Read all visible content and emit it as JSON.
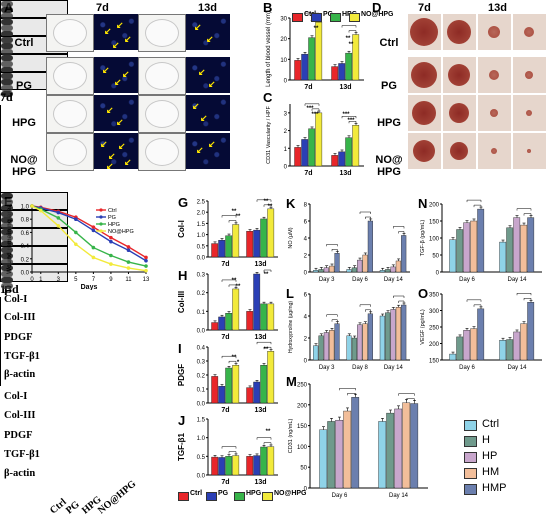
{
  "panels": {
    "A": {
      "label": "A",
      "days": [
        "7d",
        "13d"
      ],
      "rows": [
        "Ctrl",
        "PG",
        "HPG",
        "NO@\nHPG"
      ]
    },
    "B": {
      "label": "B"
    },
    "C": {
      "label": "C"
    },
    "D": {
      "label": "D",
      "days": [
        "7d",
        "13d"
      ],
      "rows": [
        "Ctrl",
        "PG",
        "HPG",
        "NO@\nHPG"
      ]
    },
    "E": {
      "label": "E"
    },
    "F": {
      "label": "F",
      "proteins": [
        "Col-I",
        "Col-III",
        "PDGF",
        "TGF-β1",
        "β-actin"
      ],
      "groups": [
        "7d",
        "13d"
      ],
      "lanes": [
        "Ctrl",
        "PG",
        "HPG",
        "NO@\nHPG"
      ]
    },
    "G": {
      "label": "G"
    },
    "H": {
      "label": "H"
    },
    "I": {
      "label": "I"
    },
    "J": {
      "label": "J"
    },
    "K": {
      "label": "K"
    },
    "L": {
      "label": "L"
    },
    "M": {
      "label": "M"
    },
    "N": {
      "label": "N"
    },
    "O": {
      "label": "O"
    }
  },
  "legend_top": [
    "Ctrl",
    "PG",
    "HPG",
    "NO@HPG"
  ],
  "legend_bottom": [
    "Ctrl",
    "PG",
    "HPG",
    "NO@HPG"
  ],
  "legend_right": [
    "Ctrl",
    "H",
    "HP",
    "HM",
    "HMP"
  ],
  "colors": {
    "ctrl": "#e8262a",
    "pg": "#2b3fb5",
    "hpg": "#37b44a",
    "no": "#f2ea3b",
    "k_ctrl": "#8fd3e8",
    "k_h": "#6f9a8c",
    "k_hp": "#c8a6cc",
    "k_hm": "#f2be9a",
    "k_hmp": "#6b7fae"
  },
  "chart_data": [
    {
      "id": "B",
      "type": "bar",
      "categories": [
        "7d",
        "13d"
      ],
      "ylabel": "Length of blood vessel (mm)",
      "ylim": [
        0,
        30
      ],
      "yticks": [
        0,
        10,
        20,
        30
      ],
      "series": [
        {
          "name": "Ctrl",
          "values": [
            9.5,
            6.5
          ]
        },
        {
          "name": "PG",
          "values": [
            12.5,
            8
          ]
        },
        {
          "name": "HPG",
          "values": [
            20.5,
            13
          ]
        },
        {
          "name": "NO@HPG",
          "values": [
            28,
            22
          ]
        }
      ],
      "sig": [
        "**",
        "**",
        "**",
        "**"
      ]
    },
    {
      "id": "C",
      "type": "bar",
      "categories": [
        "7d",
        "13d"
      ],
      "ylabel": "CD31 Vascularity / HPF",
      "ylim": [
        0,
        3.5
      ],
      "yticks": [
        0,
        1,
        2,
        3
      ],
      "series": [
        {
          "name": "Ctrl",
          "values": [
            1.05,
            0.6
          ]
        },
        {
          "name": "PG",
          "values": [
            1.5,
            0.8
          ]
        },
        {
          "name": "HPG",
          "values": [
            2.1,
            1.6
          ]
        },
        {
          "name": "NO@HPG",
          "values": [
            3.0,
            2.3
          ]
        }
      ],
      "sig": [
        "***",
        "***",
        "***",
        "***"
      ]
    },
    {
      "id": "E",
      "type": "line",
      "ylabel": "Wound remaining area",
      "xlabel": "Days",
      "ylim": [
        0,
        1.0
      ],
      "yticks": [
        0.0,
        0.2,
        0.4,
        0.6,
        0.8,
        1.0
      ],
      "xticks": [
        0,
        1,
        3,
        5,
        7,
        9,
        11,
        13
      ],
      "x": [
        0,
        1,
        3,
        5,
        7,
        9,
        11,
        13
      ],
      "series": [
        {
          "name": "Ctrl",
          "values": [
            1.0,
            0.98,
            0.92,
            0.83,
            0.68,
            0.52,
            0.38,
            0.22
          ]
        },
        {
          "name": "PG",
          "values": [
            1.0,
            0.97,
            0.9,
            0.8,
            0.63,
            0.46,
            0.33,
            0.17
          ]
        },
        {
          "name": "HPG",
          "values": [
            1.0,
            0.95,
            0.82,
            0.6,
            0.37,
            0.25,
            0.15,
            0.09
          ]
        },
        {
          "name": "NO@HPG",
          "values": [
            1.0,
            0.93,
            0.7,
            0.42,
            0.22,
            0.12,
            0.06,
            0.02
          ]
        }
      ]
    },
    {
      "id": "G",
      "type": "bar",
      "ylabel": "Col-I",
      "categories": [
        "7d",
        "13d"
      ],
      "ylim": [
        0,
        2.5
      ],
      "yticks": [
        0.0,
        0.5,
        1.0,
        1.5,
        2.0,
        2.5
      ],
      "series": [
        {
          "name": "Ctrl",
          "values": [
            0.6,
            1.15
          ]
        },
        {
          "name": "PG",
          "values": [
            0.75,
            1.2
          ]
        },
        {
          "name": "HPG",
          "values": [
            0.95,
            1.7
          ]
        },
        {
          "name": "NO@HPG",
          "values": [
            1.45,
            2.15
          ]
        }
      ],
      "sig": [
        "**",
        "**",
        "**",
        "**"
      ]
    },
    {
      "id": "H",
      "type": "bar",
      "ylabel": "Col-III",
      "categories": [
        "7d",
        "13d"
      ],
      "ylim": [
        0,
        0.3
      ],
      "yticks": [
        0.0,
        0.1,
        0.2,
        0.3
      ],
      "series": [
        {
          "name": "Ctrl",
          "values": [
            0.04,
            0.1
          ]
        },
        {
          "name": "PG",
          "values": [
            0.07,
            0.3
          ]
        },
        {
          "name": "HPG",
          "values": [
            0.09,
            0.14
          ]
        },
        {
          "name": "NO@HPG",
          "values": [
            0.22,
            0.14
          ]
        }
      ],
      "sig": [
        "**",
        "**",
        "**"
      ]
    },
    {
      "id": "I",
      "type": "bar",
      "ylabel": "PDGF",
      "categories": [
        "7d",
        "13d"
      ],
      "ylim": [
        0,
        0.4
      ],
      "yticks": [
        0.0,
        0.1,
        0.2,
        0.3,
        0.4
      ],
      "series": [
        {
          "name": "Ctrl",
          "values": [
            0.19,
            0.11
          ]
        },
        {
          "name": "PG",
          "values": [
            0.12,
            0.15
          ]
        },
        {
          "name": "HPG",
          "values": [
            0.25,
            0.27
          ]
        },
        {
          "name": "NO@HPG",
          "values": [
            0.27,
            0.37
          ]
        }
      ],
      "sig": [
        "**",
        "*",
        "**"
      ]
    },
    {
      "id": "J",
      "type": "bar",
      "ylabel": "TGF-β1",
      "categories": [
        "7d",
        "13d"
      ],
      "ylim": [
        0,
        1.5
      ],
      "yticks": [
        0.0,
        0.5,
        1.0,
        1.5
      ],
      "series": [
        {
          "name": "Ctrl",
          "values": [
            0.48,
            0.5
          ]
        },
        {
          "name": "PG",
          "values": [
            0.47,
            0.52
          ]
        },
        {
          "name": "HPG",
          "values": [
            0.5,
            0.75
          ]
        },
        {
          "name": "NO@HPG",
          "values": [
            0.52,
            0.76
          ]
        }
      ],
      "sig": [
        "**"
      ]
    },
    {
      "id": "K",
      "type": "bar",
      "ylabel": "NO (μM)",
      "categories": [
        "Day 3",
        "Day 6",
        "Day 14"
      ],
      "ylim": [
        0,
        8
      ],
      "yticks": [
        0,
        2,
        4,
        6,
        8
      ],
      "series": [
        {
          "name": "Ctrl",
          "values": [
            0.2,
            0.3,
            0.2
          ]
        },
        {
          "name": "H",
          "values": [
            0.3,
            0.5,
            0.3
          ]
        },
        {
          "name": "HP",
          "values": [
            0.5,
            1.4,
            0.6
          ]
        },
        {
          "name": "HM",
          "values": [
            0.7,
            2.0,
            1.3
          ]
        },
        {
          "name": "HMP",
          "values": [
            2.2,
            6.0,
            4.3
          ]
        }
      ]
    },
    {
      "id": "L",
      "type": "bar",
      "ylabel": "Hydroxyproline (μg/mg)",
      "categories": [
        "Day 3",
        "Day 8",
        "Day 14"
      ],
      "ylim": [
        0,
        6
      ],
      "yticks": [
        0,
        2,
        4,
        6
      ],
      "series": [
        {
          "name": "Ctrl",
          "values": [
            1.3,
            2.2,
            4.0
          ]
        },
        {
          "name": "H",
          "values": [
            2.2,
            2.0,
            4.3
          ]
        },
        {
          "name": "HP",
          "values": [
            2.5,
            3.2,
            4.6
          ]
        },
        {
          "name": "HM",
          "values": [
            2.7,
            3.3,
            4.8
          ]
        },
        {
          "name": "HMP",
          "values": [
            3.3,
            4.2,
            5.0
          ]
        }
      ]
    },
    {
      "id": "M",
      "type": "bar",
      "ylabel": "CD31 (ng/mL)",
      "categories": [
        "Day 6",
        "Day 14"
      ],
      "ylim": [
        0,
        250
      ],
      "yticks": [
        0,
        50,
        100,
        150,
        200,
        250
      ],
      "series": [
        {
          "name": "Ctrl",
          "values": [
            140,
            160
          ]
        },
        {
          "name": "H",
          "values": [
            160,
            180
          ]
        },
        {
          "name": "HP",
          "values": [
            163,
            190
          ]
        },
        {
          "name": "HM",
          "values": [
            185,
            205
          ]
        },
        {
          "name": "HMP",
          "values": [
            218,
            203
          ]
        }
      ]
    },
    {
      "id": "N",
      "type": "bar",
      "ylabel": "TGF-β (pg/mL)",
      "categories": [
        "Day 6",
        "Day 14"
      ],
      "ylim": [
        0,
        200
      ],
      "yticks": [
        0,
        50,
        100,
        150,
        200
      ],
      "series": [
        {
          "name": "Ctrl",
          "values": [
            95,
            88
          ]
        },
        {
          "name": "H",
          "values": [
            125,
            130
          ]
        },
        {
          "name": "HP",
          "values": [
            145,
            160
          ]
        },
        {
          "name": "HM",
          "values": [
            150,
            138
          ]
        },
        {
          "name": "HMP",
          "values": [
            185,
            160
          ]
        }
      ]
    },
    {
      "id": "O",
      "type": "bar",
      "ylabel": "VEGF (pg/mL)",
      "categories": [
        "Day 6",
        "Day 14"
      ],
      "ylim": [
        150,
        350
      ],
      "yticks": [
        150,
        200,
        250,
        300,
        350
      ],
      "series": [
        {
          "name": "Ctrl",
          "values": [
            168,
            210
          ]
        },
        {
          "name": "H",
          "values": [
            220,
            212
          ]
        },
        {
          "name": "HP",
          "values": [
            240,
            235
          ]
        },
        {
          "name": "HM",
          "values": [
            245,
            260
          ]
        },
        {
          "name": "HMP",
          "values": [
            305,
            325
          ]
        }
      ]
    }
  ]
}
